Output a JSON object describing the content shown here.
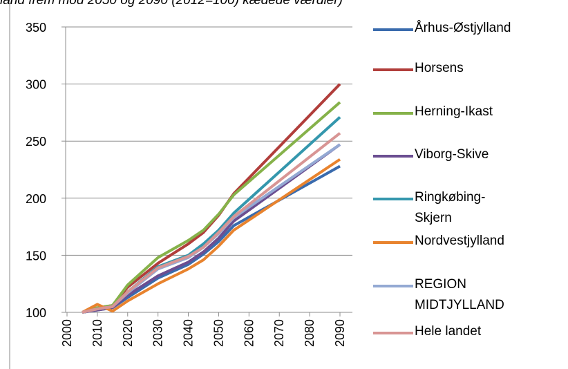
{
  "chart_data": {
    "type": "line",
    "title": "land frem mod 2050 og 2090 (2012=100) kædede værdier)",
    "x": [
      2005,
      2010,
      2015,
      2020,
      2030,
      2040,
      2045,
      2050,
      2055,
      2090
    ],
    "xlim": [
      2000,
      2090
    ],
    "xticks": [
      2000,
      2010,
      2020,
      2030,
      2040,
      2050,
      2060,
      2070,
      2080,
      2090
    ],
    "ylim": [
      100,
      350
    ],
    "yticks": [
      100,
      150,
      200,
      250,
      300,
      350
    ],
    "grid": true,
    "series": [
      {
        "name": "Århus-Østjylland",
        "color": "#3a6bad",
        "values": [
          100,
          102,
          104,
          113,
          130,
          142,
          151,
          162,
          176,
          228
        ]
      },
      {
        "name": "Horsens",
        "color": "#b13e3b",
        "values": [
          100,
          104,
          106,
          122,
          143,
          160,
          170,
          185,
          204,
          300
        ]
      },
      {
        "name": "Herning-Ikast",
        "color": "#86b24a",
        "values": [
          100,
          104,
          106,
          124,
          148,
          163,
          172,
          186,
          203,
          284
        ]
      },
      {
        "name": "Viborg-Skive",
        "color": "#6b4e91",
        "values": [
          100,
          102,
          104,
          115,
          132,
          144,
          153,
          165,
          180,
          247
        ]
      },
      {
        "name": "Ringkøbing-Skjern",
        "color": "#3497ad",
        "values": [
          100,
          103,
          105,
          118,
          140,
          150,
          160,
          172,
          187,
          271
        ]
      },
      {
        "name": "Nordvestjylland",
        "color": "#e8832e",
        "values": [
          100,
          107,
          101,
          110,
          125,
          138,
          146,
          158,
          172,
          234
        ]
      },
      {
        "name": "REGION MIDTJYLLAND",
        "color": "#94a9d3",
        "values": [
          100,
          103,
          105,
          117,
          138,
          148,
          157,
          169,
          183,
          247
        ]
      },
      {
        "name": "Hele landet",
        "color": "#d89594",
        "values": [
          100,
          103,
          105,
          118,
          139,
          149,
          157,
          170,
          184,
          257
        ]
      }
    ]
  }
}
